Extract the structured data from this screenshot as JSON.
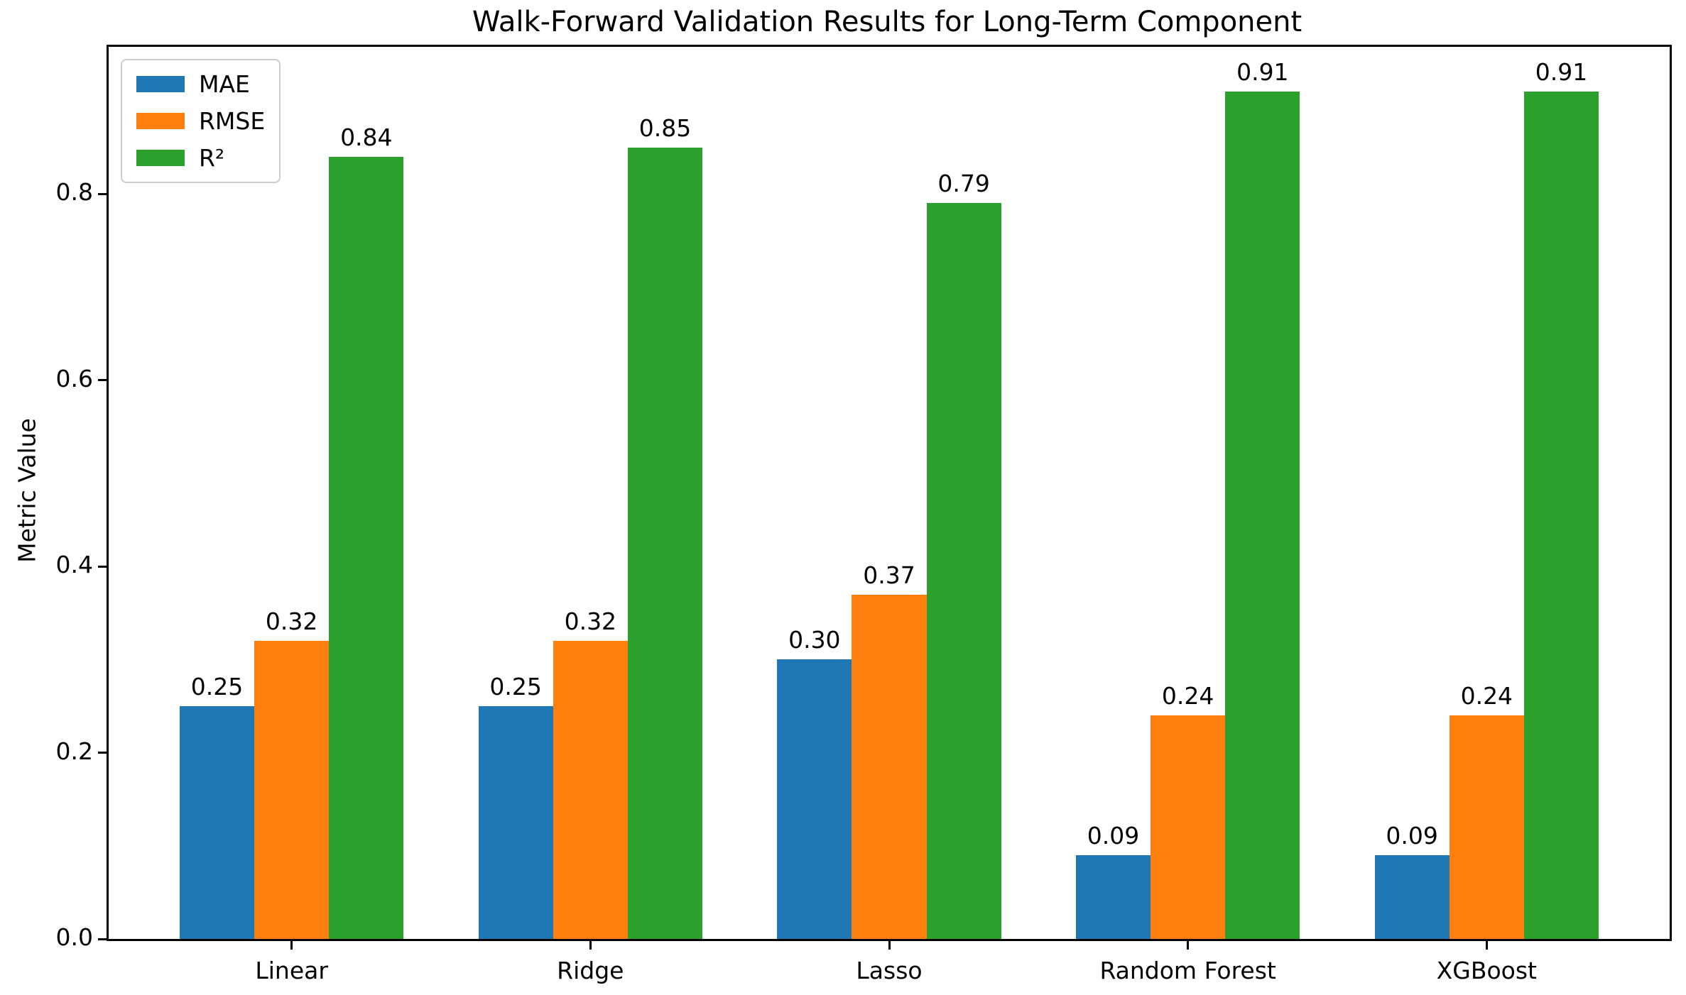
{
  "chart_data": {
    "type": "bar",
    "title": "Walk-Forward Validation Results for Long-Term Component",
    "xlabel": "",
    "ylabel": "Metric Value",
    "categories": [
      "Linear",
      "Ridge",
      "Lasso",
      "Random Forest",
      "XGBoost"
    ],
    "series": [
      {
        "name": "MAE",
        "color": "#1f77b4",
        "values": [
          0.25,
          0.25,
          0.3,
          0.09,
          0.09
        ]
      },
      {
        "name": "RMSE",
        "color": "#ff7f0e",
        "values": [
          0.32,
          0.32,
          0.37,
          0.24,
          0.24
        ]
      },
      {
        "name": "R²",
        "color": "#2ca02c",
        "values": [
          0.84,
          0.85,
          0.79,
          0.91,
          0.91
        ]
      }
    ],
    "bar_value_labels": [
      [
        "0.25",
        "0.32",
        "0.84"
      ],
      [
        "0.25",
        "0.32",
        "0.85"
      ],
      [
        "0.30",
        "0.37",
        "0.79"
      ],
      [
        "0.09",
        "0.24",
        "0.91"
      ],
      [
        "0.09",
        "0.24",
        "0.91"
      ]
    ],
    "yticks": [
      0.0,
      0.2,
      0.4,
      0.6,
      0.8
    ],
    "ylim": [
      0,
      0.958
    ],
    "grid": false,
    "legend_position": "upper left",
    "background_color": "#ffffff",
    "axis_color": "#000000"
  }
}
